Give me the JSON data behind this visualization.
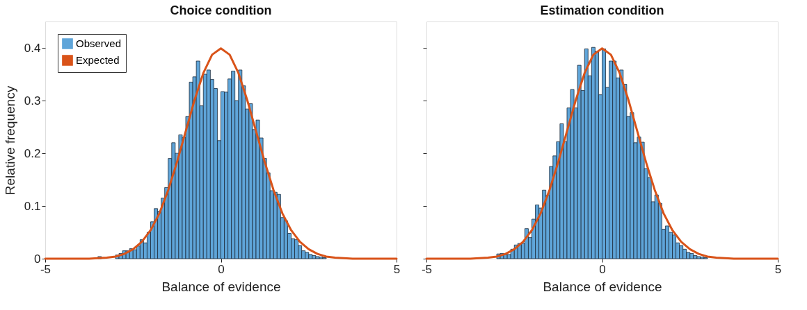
{
  "chart_data": [
    {
      "type": "histogram",
      "title": "Choice condition",
      "xlabel": "Balance of evidence",
      "ylabel": "Relative frequency",
      "xlim": [
        -5,
        5
      ],
      "xticks": [
        -5,
        0,
        5
      ],
      "ylim": [
        0,
        0.45
      ],
      "yticks": [
        0,
        0.1,
        0.2,
        0.3,
        0.4
      ],
      "grid": false,
      "legend": "top left",
      "bins": [
        -3.5,
        -3.4,
        -3.3,
        -3.2,
        -3.1,
        -3.0,
        -2.9,
        -2.8,
        -2.7,
        -2.6,
        -2.5,
        -2.4,
        -2.3,
        -2.2,
        -2.1,
        -2.0,
        -1.9,
        -1.8,
        -1.7,
        -1.6,
        -1.5,
        -1.4,
        -1.3,
        -1.2,
        -1.1,
        -1.0,
        -0.9,
        -0.8,
        -0.7,
        -0.6,
        -0.5,
        -0.4,
        -0.3,
        -0.2,
        -0.1,
        0.0,
        0.1,
        0.2,
        0.3,
        0.4,
        0.5,
        0.6,
        0.7,
        0.8,
        0.9,
        1.0,
        1.1,
        1.2,
        1.3,
        1.4,
        1.5,
        1.6,
        1.7,
        1.8,
        1.9,
        2.0,
        2.1,
        2.2,
        2.3,
        2.4,
        2.5,
        2.6,
        2.7,
        2.8,
        2.9,
        3.0,
        3.1,
        3.2,
        3.3,
        3.4,
        3.5
      ],
      "series": [
        {
          "name": "Observed",
          "type": "histogram",
          "color": "#5fa5d9",
          "values": [
            0.004,
            0,
            0,
            0,
            0,
            0.007,
            0.01,
            0.015,
            0.015,
            0.019,
            0.017,
            0.024,
            0.036,
            0.03,
            0.05,
            0.07,
            0.095,
            0.09,
            0.115,
            0.135,
            0.19,
            0.22,
            0.2,
            0.235,
            0.23,
            0.27,
            0.335,
            0.345,
            0.375,
            0.29,
            0.35,
            0.358,
            0.34,
            0.323,
            0.224,
            0.317,
            0.316,
            0.341,
            0.356,
            0.3,
            0.358,
            0.328,
            0.284,
            0.294,
            0.245,
            0.263,
            0.229,
            0.19,
            0.163,
            0.129,
            0.126,
            0.122,
            0.078,
            0.072,
            0.048,
            0.038,
            0.036,
            0.025,
            0.015,
            0.012,
            0.008,
            0.006,
            0.004,
            0.003,
            0.002,
            0,
            0,
            0,
            0,
            null
          ]
        },
        {
          "name": "Expected",
          "type": "line",
          "color": "#d95319",
          "x": [
            -5,
            -4.5,
            -4,
            -3.75,
            -3.5,
            -3.25,
            -3,
            -2.75,
            -2.5,
            -2.25,
            -2,
            -1.75,
            -1.5,
            -1.25,
            -1,
            -0.75,
            -0.5,
            -0.25,
            0,
            0.25,
            0.5,
            0.75,
            1,
            1.25,
            1.5,
            1.75,
            2,
            2.25,
            2.5,
            2.75,
            3,
            3.25,
            3.5,
            3.75,
            4,
            4.5,
            5
          ],
          "values": [
            0,
            0,
            0,
            0,
            0.001,
            0.002,
            0.004,
            0.009,
            0.018,
            0.032,
            0.054,
            0.086,
            0.13,
            0.183,
            0.242,
            0.301,
            0.352,
            0.387,
            0.399,
            0.387,
            0.352,
            0.301,
            0.242,
            0.183,
            0.13,
            0.086,
            0.054,
            0.032,
            0.018,
            0.009,
            0.004,
            0.002,
            0.001,
            0,
            0,
            0,
            0
          ]
        }
      ]
    },
    {
      "type": "histogram",
      "title": "Estimation condition",
      "xlabel": "Balance of evidence",
      "xlim": [
        -5,
        5
      ],
      "xticks": [
        -5,
        0,
        5
      ],
      "ylim": [
        0,
        0.45
      ],
      "yticks": [
        0,
        0.1,
        0.2,
        0.3,
        0.4
      ],
      "grid": false,
      "tick_labels": "x",
      "bins": [
        -3.5,
        -3.4,
        -3.3,
        -3.2,
        -3.1,
        -3.0,
        -2.9,
        -2.8,
        -2.7,
        -2.6,
        -2.5,
        -2.4,
        -2.3,
        -2.2,
        -2.1,
        -2.0,
        -1.9,
        -1.8,
        -1.7,
        -1.6,
        -1.5,
        -1.4,
        -1.3,
        -1.2,
        -1.1,
        -1.0,
        -0.9,
        -0.8,
        -0.7,
        -0.6,
        -0.5,
        -0.4,
        -0.3,
        -0.2,
        -0.1,
        0.0,
        0.1,
        0.2,
        0.3,
        0.4,
        0.5,
        0.6,
        0.7,
        0.8,
        0.9,
        1.0,
        1.1,
        1.2,
        1.3,
        1.4,
        1.5,
        1.6,
        1.7,
        1.8,
        1.9,
        2.0,
        2.1,
        2.2,
        2.3,
        2.4,
        2.5,
        2.6,
        2.7,
        2.8,
        2.9,
        3.0,
        3.1,
        3.2,
        3.3,
        3.4,
        3.5
      ],
      "series": [
        {
          "type": "histogram",
          "color": "#5fa5d9",
          "values": [
            0,
            0,
            0,
            null,
            null,
            0.009,
            0.01,
            0.008,
            0.008,
            0.018,
            0.026,
            0.029,
            0.029,
            0.057,
            0.04,
            0.075,
            0.102,
            0.096,
            0.13,
            0.12,
            0.175,
            0.195,
            0.222,
            0.256,
            0.222,
            0.286,
            0.321,
            0.286,
            0.367,
            0.319,
            0.398,
            0.347,
            0.401,
            0.393,
            0.311,
            0.398,
            0.325,
            0.375,
            0.375,
            0.343,
            0.358,
            0.331,
            0.27,
            0.277,
            0.22,
            0.231,
            0.221,
            0.171,
            0.154,
            0.108,
            0.121,
            0.105,
            0.056,
            0.062,
            0.05,
            0.045,
            0.03,
            0.025,
            0.018,
            0.012,
            0.01,
            0.006,
            0.004,
            0.003,
            0.002,
            0,
            0,
            0,
            null,
            0
          ]
        },
        {
          "type": "line",
          "color": "#d95319",
          "x": [
            -5,
            -4.5,
            -4,
            -3.75,
            -3.5,
            -3.25,
            -3,
            -2.75,
            -2.5,
            -2.25,
            -2,
            -1.75,
            -1.5,
            -1.25,
            -1,
            -0.75,
            -0.5,
            -0.25,
            0,
            0.25,
            0.5,
            0.75,
            1,
            1.25,
            1.5,
            1.75,
            2,
            2.25,
            2.5,
            2.75,
            3,
            3.25,
            3.5,
            3.75,
            4,
            4.5,
            5
          ],
          "values": [
            0,
            0,
            0,
            0,
            0.001,
            0.002,
            0.004,
            0.009,
            0.018,
            0.032,
            0.054,
            0.086,
            0.13,
            0.183,
            0.242,
            0.301,
            0.352,
            0.387,
            0.399,
            0.387,
            0.352,
            0.301,
            0.242,
            0.183,
            0.13,
            0.086,
            0.054,
            0.032,
            0.018,
            0.009,
            0.004,
            0.002,
            0.001,
            0,
            0,
            0,
            0
          ]
        }
      ]
    }
  ]
}
